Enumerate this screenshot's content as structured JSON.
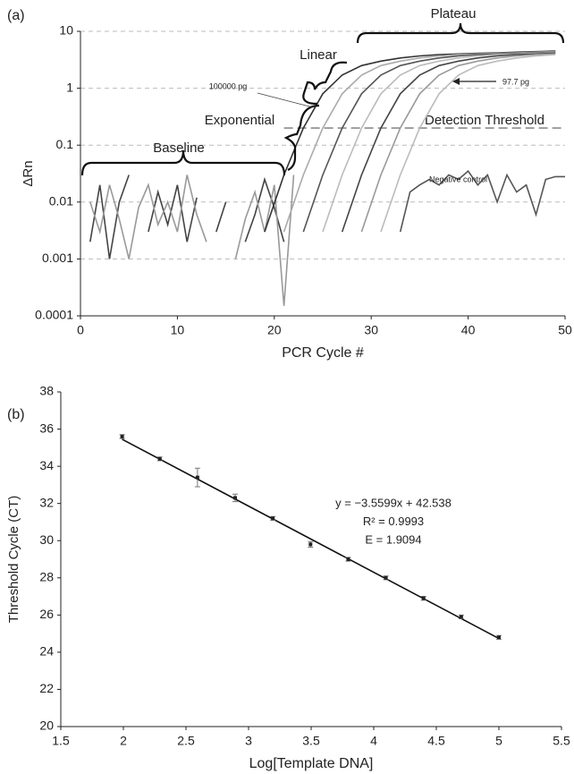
{
  "chart_data": [
    {
      "type": "line",
      "panel": "(a)",
      "x_label": "PCR Cycle #",
      "y_label": "ΔRn",
      "xlim": [
        0,
        50
      ],
      "xticks": [
        0,
        10,
        20,
        30,
        40,
        50
      ],
      "ylim": [
        0.0001,
        10
      ],
      "yticks": [
        10,
        1,
        0.1,
        0.01,
        0.001,
        0.0001
      ],
      "log_scale": true,
      "grid": true,
      "threshold": 0.2,
      "threshold_label": "Detection Threshold",
      "annotations": [
        "Plateau",
        "Linear",
        "100000 pg",
        "Exponential",
        "Baseline",
        "97.7 pg",
        "Negative control"
      ],
      "series": [
        {
          "color": "#444444",
          "x": [
            1,
            2,
            3,
            4,
            5,
            6,
            7,
            8,
            9,
            10,
            11,
            12,
            13,
            14,
            15,
            16,
            17,
            18,
            19,
            20,
            21
          ],
          "values": [
            0.002,
            0.02,
            0.001,
            0.01,
            0.03,
            null,
            0.003,
            0.015,
            0.004,
            0.02,
            0.002,
            0.012,
            null,
            0.003,
            0.01,
            null,
            0.002,
            0.006,
            0.025,
            0.008,
            0.002
          ]
        },
        {
          "color": "#999999",
          "x": [
            1,
            2,
            3,
            4,
            5,
            6,
            7,
            8,
            9,
            10,
            11,
            12,
            13,
            14,
            15,
            16,
            17,
            18,
            19,
            20,
            21,
            22
          ],
          "values": [
            0.01,
            0.003,
            0.02,
            0.005,
            0.001,
            0.008,
            0.02,
            0.004,
            0.01,
            0.003,
            0.03,
            0.006,
            0.002,
            null,
            null,
            0.001,
            0.005,
            0.015,
            0.003,
            0.02,
            0.00015,
            0.03
          ]
        },
        {
          "color": "#333333",
          "x": [
            19,
            21,
            23,
            25,
            27,
            29,
            31,
            33,
            35,
            37,
            39,
            41,
            43,
            45,
            47,
            49
          ],
          "values": [
            0.003,
            0.03,
            0.2,
            0.8,
            1.7,
            2.5,
            3.0,
            3.4,
            3.7,
            3.9,
            4.0,
            4.1,
            4.2,
            4.3,
            4.4,
            4.5
          ]
        },
        {
          "color": "#aaaaaa",
          "x": [
            21,
            23,
            25,
            27,
            29,
            31,
            33,
            35,
            37,
            39,
            41,
            43,
            45,
            47,
            49
          ],
          "values": [
            0.003,
            0.03,
            0.2,
            0.8,
            1.7,
            2.5,
            3.0,
            3.4,
            3.7,
            3.9,
            4.0,
            4.1,
            4.2,
            4.3,
            4.4
          ]
        },
        {
          "color": "#555555",
          "x": [
            23,
            25,
            27,
            29,
            31,
            33,
            35,
            37,
            39,
            41,
            43,
            45,
            47,
            49
          ],
          "values": [
            0.003,
            0.03,
            0.2,
            0.8,
            1.7,
            2.5,
            3.0,
            3.4,
            3.7,
            3.9,
            4.0,
            4.1,
            4.2,
            4.3
          ]
        },
        {
          "color": "#bbbbbb",
          "x": [
            25,
            27,
            29,
            31,
            33,
            35,
            37,
            39,
            41,
            43,
            45,
            47,
            49
          ],
          "values": [
            0.003,
            0.03,
            0.2,
            0.8,
            1.7,
            2.5,
            3.0,
            3.4,
            3.7,
            3.9,
            4.0,
            4.1,
            4.2
          ]
        },
        {
          "color": "#444444",
          "x": [
            27,
            29,
            31,
            33,
            35,
            37,
            39,
            41,
            43,
            45,
            47,
            49
          ],
          "values": [
            0.003,
            0.03,
            0.2,
            0.8,
            1.7,
            2.5,
            3.0,
            3.4,
            3.7,
            3.9,
            4.0,
            4.1
          ]
        },
        {
          "color": "#999999",
          "x": [
            29,
            31,
            33,
            35,
            37,
            39,
            41,
            43,
            45,
            47,
            49
          ],
          "values": [
            0.003,
            0.03,
            0.2,
            0.8,
            1.7,
            2.5,
            3.0,
            3.4,
            3.7,
            3.9,
            4.0
          ]
        },
        {
          "color": "#bbbbbb",
          "x": [
            31,
            33,
            35,
            37,
            39,
            41,
            43,
            45,
            47,
            49
          ],
          "values": [
            0.003,
            0.03,
            0.2,
            0.8,
            1.7,
            2.5,
            3.0,
            3.4,
            3.7,
            3.9
          ]
        },
        {
          "color": "#555555",
          "x": [
            33,
            34,
            35,
            36,
            37,
            38,
            39,
            40,
            41,
            42,
            43,
            44,
            45,
            46,
            47,
            48,
            49,
            50
          ],
          "values": [
            0.003,
            0.015,
            0.02,
            0.025,
            0.02,
            0.03,
            0.025,
            0.035,
            0.02,
            0.03,
            0.01,
            0.03,
            0.015,
            0.02,
            0.006,
            0.025,
            0.028,
            0.028
          ]
        }
      ]
    },
    {
      "type": "scatter",
      "panel": "(b)",
      "x_label": "Log[Template DNA]",
      "y_label": "Threshold Cycle (CT)",
      "xlim": [
        1.5,
        5.5
      ],
      "xticks": [
        1.5,
        2,
        2.5,
        3,
        3.5,
        4,
        4.5,
        5,
        5.5
      ],
      "ylim": [
        20,
        38
      ],
      "yticks": [
        20,
        22,
        24,
        26,
        28,
        30,
        32,
        34,
        36,
        38
      ],
      "color": "#222222",
      "x": [
        1.99,
        2.291,
        2.592,
        2.893,
        3.194,
        3.495,
        3.796,
        4.097,
        4.398,
        4.699,
        5
      ],
      "values": [
        35.6,
        34.4,
        33.4,
        32.3,
        31.2,
        29.8,
        29.0,
        28.0,
        26.9,
        25.9,
        24.8
      ],
      "errors": [
        0.1,
        0.1,
        0.5,
        0.2,
        0.1,
        0.15,
        0.1,
        0.1,
        0.1,
        0.1,
        0.1
      ],
      "trendline": {
        "slope": -3.5599,
        "intercept": 42.538
      },
      "annotations": [
        "y = −3.5599x + 42.538",
        "R² = 0.9993",
        "E = 1.9094"
      ]
    }
  ]
}
